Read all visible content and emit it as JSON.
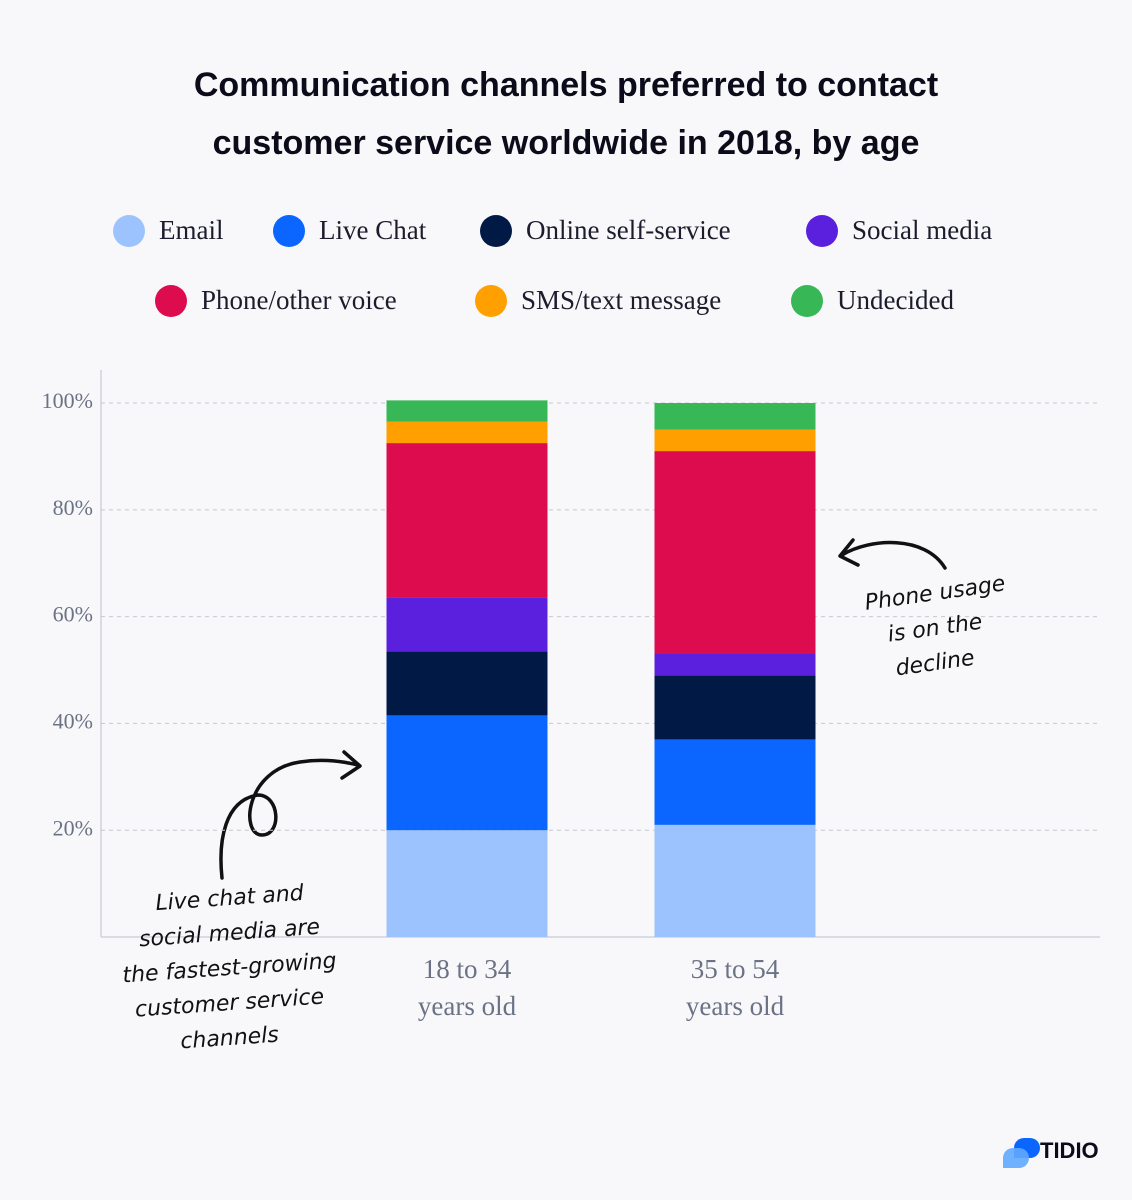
{
  "chart_data": {
    "type": "stacked_bar",
    "title": "Communication channels preferred to contact customer service worldwide in 2018, by age",
    "categories": [
      "18 to 34 years old",
      "35 to 54 years old"
    ],
    "series": [
      {
        "name": "Email",
        "color": "#9dc3ff",
        "values": [
          20,
          21
        ]
      },
      {
        "name": "Live Chat",
        "color": "#0a66ff",
        "values": [
          21.5,
          16
        ]
      },
      {
        "name": "Online self-service",
        "color": "#011a45",
        "values": [
          12,
          12
        ]
      },
      {
        "name": "Social media",
        "color": "#5b20dd",
        "values": [
          10,
          4
        ]
      },
      {
        "name": "Phone/other voice",
        "color": "#dc0c4f",
        "values": [
          29,
          38
        ]
      },
      {
        "name": "SMS/text message",
        "color": "#ffa000",
        "values": [
          4,
          4
        ]
      },
      {
        "name": "Undecided",
        "color": "#37b755",
        "values": [
          4,
          5
        ]
      }
    ],
    "ylim": [
      0,
      106
    ],
    "yticks": [
      {
        "value": 20,
        "label": "20%"
      },
      {
        "value": 40,
        "label": "40%"
      },
      {
        "value": 60,
        "label": "60%"
      },
      {
        "value": 80,
        "label": "80%"
      },
      {
        "value": 100,
        "label": "100%"
      }
    ],
    "grid": true,
    "annotations": [
      {
        "lines": [
          "Live chat and",
          "social media are",
          "the fastest-growing",
          "customer service",
          "channels"
        ]
      },
      {
        "lines": [
          "Phone usage",
          "is on the",
          "decline"
        ]
      }
    ]
  },
  "logo": "TIDIO"
}
